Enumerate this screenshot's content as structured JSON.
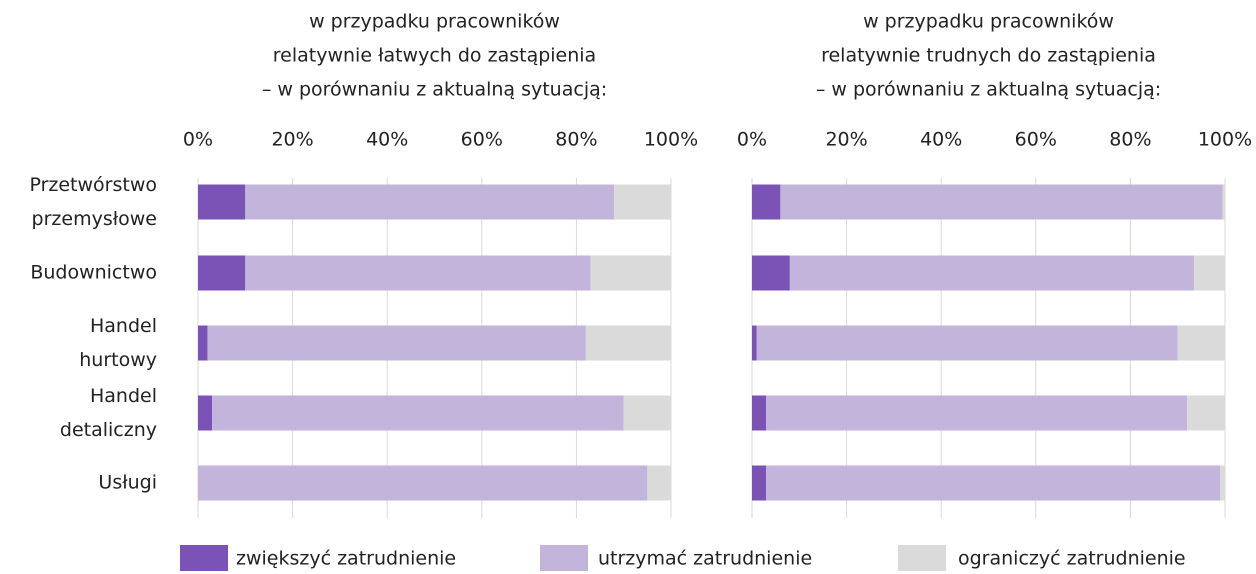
{
  "categories": [
    "Przetwórstwo przemysłowe",
    "Budownictwo",
    "Handel hurtowy",
    "Handel detaliczny",
    "Usługi"
  ],
  "legend": [
    {
      "name": "zwiększyć zatrudnienie",
      "color": "#7b52b5"
    },
    {
      "name": "utrzymać zatrudnienie",
      "color": "#c3b4db"
    },
    {
      "name": "ograniczyć zatrudnienie",
      "color": "#dadada"
    }
  ],
  "chart_data": [
    {
      "type": "bar",
      "title": [
        "w przypadku pracowników",
        "relatywnie łatwych do zastąpienia",
        "– w porównaniu z aktualną sytuacją:"
      ],
      "xlim": [
        0,
        100
      ],
      "xticks": [
        {
          "value": 0,
          "label": "0%"
        },
        {
          "value": 20,
          "label": "20%"
        },
        {
          "value": 40,
          "label": "40%"
        },
        {
          "value": 60,
          "label": "60%"
        },
        {
          "value": 80,
          "label": "80%"
        },
        {
          "value": 100,
          "label": "100%"
        }
      ],
      "grid": true,
      "series": [
        {
          "values": [
            10,
            10,
            2,
            3,
            0
          ]
        },
        {
          "values": [
            78,
            73,
            80,
            87,
            95
          ]
        },
        {
          "values": [
            12,
            17,
            18,
            10,
            5
          ]
        }
      ]
    },
    {
      "type": "bar",
      "title": [
        "w przypadku pracowników",
        "relatywnie trudnych do zastąpienia",
        "– w porównaniu z aktualną sytuacją:"
      ],
      "xlim": [
        0,
        100
      ],
      "xticks": [
        {
          "value": 0,
          "label": "0%"
        },
        {
          "value": 20,
          "label": "20%"
        },
        {
          "value": 40,
          "label": "40%"
        },
        {
          "value": 60,
          "label": "60%"
        },
        {
          "value": 80,
          "label": "80%"
        },
        {
          "value": 100,
          "label": "100%"
        }
      ],
      "grid": true,
      "series": [
        {
          "values": [
            6,
            8,
            1,
            3,
            3
          ]
        },
        {
          "values": [
            93.5,
            85.5,
            89,
            89,
            96
          ]
        },
        {
          "values": [
            0.5,
            6.5,
            10,
            8,
            1
          ]
        }
      ]
    }
  ]
}
